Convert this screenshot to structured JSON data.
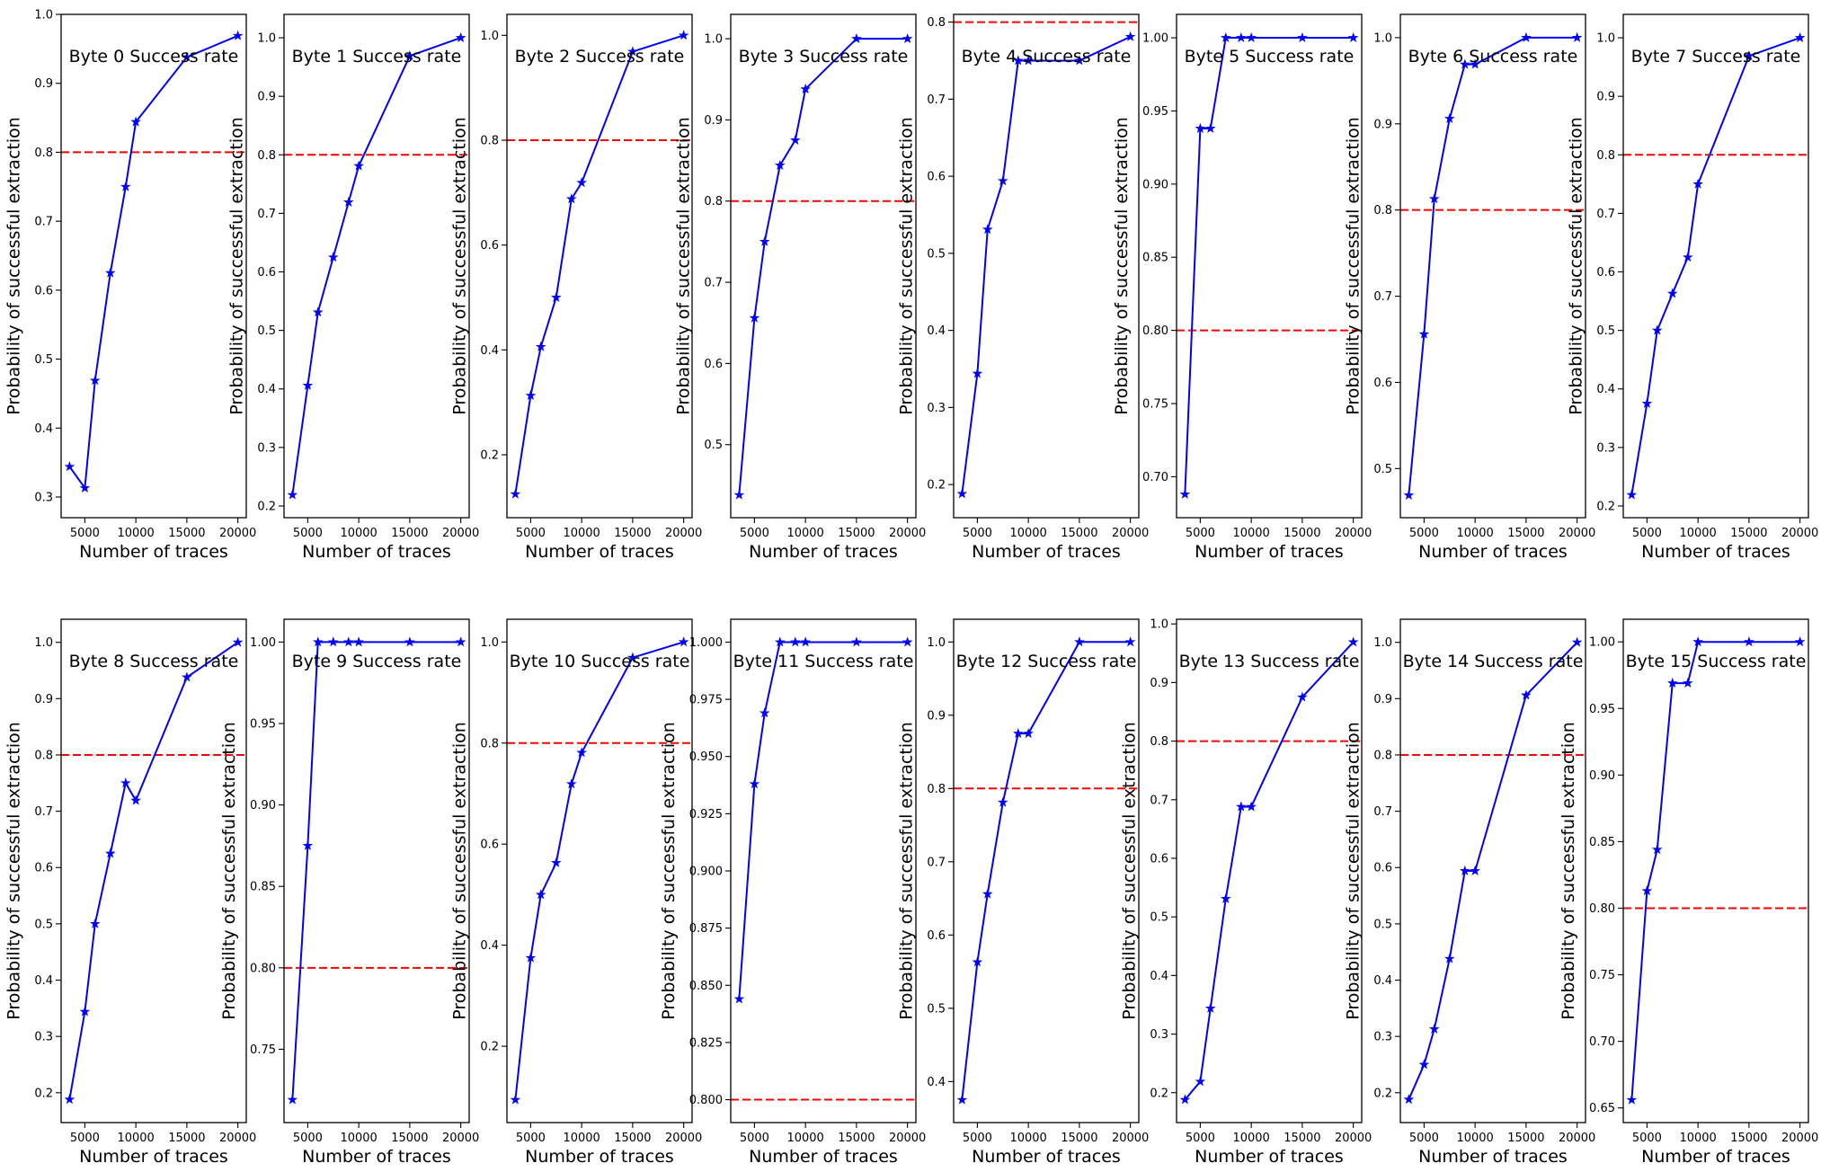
{
  "chart_data": [
    {
      "type": "line",
      "title": "Byte 0 Success rate",
      "xlabel": "Number of traces",
      "ylabel": "Probability of successful extraction",
      "x": [
        3500,
        5000,
        6000,
        7500,
        9000,
        10000,
        15000,
        20000
      ],
      "values": [
        0.344,
        0.313,
        0.469,
        0.625,
        0.75,
        0.844,
        0.938,
        0.969
      ],
      "threshold": 0.8,
      "xlim": [
        2675,
        20825
      ],
      "ylim": [
        0.27,
        1.0
      ],
      "xticks": [
        5000,
        10000,
        15000,
        20000
      ],
      "xtick_labels": [
        "5000",
        "10000",
        "15000",
        "20000"
      ],
      "yticks": [
        0.3,
        0.4,
        0.5,
        0.6,
        0.7,
        0.8,
        0.9,
        1.0
      ],
      "ytick_labels": [
        "0.3",
        "0.4",
        "0.5",
        "0.6",
        "0.7",
        "0.8",
        "0.9",
        "1.0"
      ]
    },
    {
      "type": "line",
      "title": "Byte 1 Success rate",
      "xlabel": "Number of traces",
      "ylabel": "Probability of successful extraction",
      "x": [
        3500,
        5000,
        6000,
        7500,
        9000,
        10000,
        15000,
        20000
      ],
      "values": [
        0.219,
        0.406,
        0.531,
        0.625,
        0.719,
        0.781,
        0.969,
        1.0
      ],
      "threshold": 0.8,
      "xlim": [
        2675,
        20825
      ],
      "ylim": [
        0.18,
        1.04
      ],
      "xticks": [
        5000,
        10000,
        15000,
        20000
      ],
      "xtick_labels": [
        "5000",
        "10000",
        "15000",
        "20000"
      ],
      "yticks": [
        0.2,
        0.3,
        0.4,
        0.5,
        0.6,
        0.7,
        0.8,
        0.9,
        1.0
      ],
      "ytick_labels": [
        "0.2",
        "0.3",
        "0.4",
        "0.5",
        "0.6",
        "0.7",
        "0.8",
        "0.9",
        "1.0"
      ]
    },
    {
      "type": "line",
      "title": "Byte 2 Success rate",
      "xlabel": "Number of traces",
      "ylabel": "Probability of successful extraction",
      "x": [
        3500,
        5000,
        6000,
        7500,
        9000,
        10000,
        15000,
        20000
      ],
      "values": [
        0.125,
        0.313,
        0.406,
        0.5,
        0.688,
        0.719,
        0.969,
        1.0
      ],
      "threshold": 0.8,
      "xlim": [
        2675,
        20825
      ],
      "ylim": [
        0.08,
        1.04
      ],
      "xticks": [
        5000,
        10000,
        15000,
        20000
      ],
      "xtick_labels": [
        "5000",
        "10000",
        "15000",
        "20000"
      ],
      "yticks": [
        0.2,
        0.4,
        0.6,
        0.8,
        1.0
      ],
      "ytick_labels": [
        "0.2",
        "0.4",
        "0.6",
        "0.8",
        "1.0"
      ]
    },
    {
      "type": "line",
      "title": "Byte 3 Success rate",
      "xlabel": "Number of traces",
      "ylabel": "Probability of successful extraction",
      "x": [
        3500,
        5000,
        6000,
        7500,
        9000,
        10000,
        15000,
        20000
      ],
      "values": [
        0.438,
        0.656,
        0.75,
        0.844,
        0.875,
        0.938,
        1.0,
        1.0
      ],
      "threshold": 0.8,
      "xlim": [
        2675,
        20825
      ],
      "ylim": [
        0.41,
        1.03
      ],
      "xticks": [
        5000,
        10000,
        15000,
        20000
      ],
      "xtick_labels": [
        "5000",
        "10000",
        "15000",
        "20000"
      ],
      "yticks": [
        0.5,
        0.6,
        0.7,
        0.8,
        0.9,
        1.0
      ],
      "ytick_labels": [
        "0.5",
        "0.6",
        "0.7",
        "0.8",
        "0.9",
        "1.0"
      ]
    },
    {
      "type": "line",
      "title": "Byte 4 Success rate",
      "xlabel": "Number of traces",
      "ylabel": "Probability of successful extraction",
      "x": [
        3500,
        5000,
        6000,
        7500,
        9000,
        10000,
        15000,
        20000
      ],
      "values": [
        0.188,
        0.344,
        0.531,
        0.594,
        0.75,
        0.75,
        0.75,
        0.781
      ],
      "threshold": 0.8,
      "xlim": [
        2675,
        20825
      ],
      "ylim": [
        0.157,
        0.81
      ],
      "xticks": [
        5000,
        10000,
        15000,
        20000
      ],
      "xtick_labels": [
        "5000",
        "10000",
        "15000",
        "20000"
      ],
      "yticks": [
        0.2,
        0.3,
        0.4,
        0.5,
        0.6,
        0.7,
        0.8
      ],
      "ytick_labels": [
        "0.2",
        "0.3",
        "0.4",
        "0.5",
        "0.6",
        "0.7",
        "0.8"
      ]
    },
    {
      "type": "line",
      "title": "Byte 5 Success rate",
      "xlabel": "Number of traces",
      "ylabel": "Probability of successful extraction",
      "x": [
        3500,
        5000,
        6000,
        7500,
        9000,
        10000,
        15000,
        20000
      ],
      "values": [
        0.688,
        0.938,
        0.938,
        1.0,
        1.0,
        1.0,
        1.0,
        1.0
      ],
      "threshold": 0.8,
      "xlim": [
        2675,
        20825
      ],
      "ylim": [
        0.672,
        1.016
      ],
      "xticks": [
        5000,
        10000,
        15000,
        20000
      ],
      "xtick_labels": [
        "5000",
        "10000",
        "15000",
        "20000"
      ],
      "yticks": [
        0.7,
        0.75,
        0.8,
        0.85,
        0.9,
        0.95,
        1.0
      ],
      "ytick_labels": [
        "0.70",
        "0.75",
        "0.80",
        "0.85",
        "0.90",
        "0.95",
        "1.00"
      ]
    },
    {
      "type": "line",
      "title": "Byte 6 Success rate",
      "xlabel": "Number of traces",
      "ylabel": "Probability of successful extraction",
      "x": [
        3500,
        5000,
        6000,
        7500,
        9000,
        10000,
        15000,
        20000
      ],
      "values": [
        0.469,
        0.656,
        0.813,
        0.906,
        0.969,
        0.969,
        1.0,
        1.0
      ],
      "threshold": 0.8,
      "xlim": [
        2675,
        20825
      ],
      "ylim": [
        0.443,
        1.027
      ],
      "xticks": [
        5000,
        10000,
        15000,
        20000
      ],
      "xtick_labels": [
        "5000",
        "10000",
        "15000",
        "20000"
      ],
      "yticks": [
        0.5,
        0.6,
        0.7,
        0.8,
        0.9,
        1.0
      ],
      "ytick_labels": [
        "0.5",
        "0.6",
        "0.7",
        "0.8",
        "0.9",
        "1.0"
      ]
    },
    {
      "type": "line",
      "title": "Byte 7 Success rate",
      "xlabel": "Number of traces",
      "ylabel": "Probability of successful extraction",
      "x": [
        3500,
        5000,
        6000,
        7500,
        9000,
        10000,
        15000,
        20000
      ],
      "values": [
        0.219,
        0.375,
        0.5,
        0.563,
        0.625,
        0.75,
        0.969,
        1.0
      ],
      "threshold": 0.8,
      "xlim": [
        2675,
        20825
      ],
      "ylim": [
        0.18,
        1.04
      ],
      "xticks": [
        5000,
        10000,
        15000,
        20000
      ],
      "xtick_labels": [
        "5000",
        "10000",
        "15000",
        "20000"
      ],
      "yticks": [
        0.2,
        0.3,
        0.4,
        0.5,
        0.6,
        0.7,
        0.8,
        0.9,
        1.0
      ],
      "ytick_labels": [
        "0.2",
        "0.3",
        "0.4",
        "0.5",
        "0.6",
        "0.7",
        "0.8",
        "0.9",
        "1.0"
      ]
    },
    {
      "type": "line",
      "title": "Byte 8 Success rate",
      "xlabel": "Number of traces",
      "ylabel": "Probability of successful extraction",
      "x": [
        3500,
        5000,
        6000,
        7500,
        9000,
        10000,
        15000,
        20000
      ],
      "values": [
        0.188,
        0.344,
        0.5,
        0.625,
        0.75,
        0.719,
        0.938,
        1.0
      ],
      "threshold": 0.8,
      "xlim": [
        2675,
        20825
      ],
      "ylim": [
        0.147,
        1.041
      ],
      "xticks": [
        5000,
        10000,
        15000,
        20000
      ],
      "xtick_labels": [
        "5000",
        "10000",
        "15000",
        "20000"
      ],
      "yticks": [
        0.2,
        0.3,
        0.4,
        0.5,
        0.6,
        0.7,
        0.8,
        0.9,
        1.0
      ],
      "ytick_labels": [
        "0.2",
        "0.3",
        "0.4",
        "0.5",
        "0.6",
        "0.7",
        "0.8",
        "0.9",
        "1.0"
      ]
    },
    {
      "type": "line",
      "title": "Byte 9 Success rate",
      "xlabel": "Number of traces",
      "ylabel": "Probability of successful extraction",
      "x": [
        3500,
        5000,
        6000,
        7500,
        9000,
        10000,
        15000,
        20000
      ],
      "values": [
        0.719,
        0.875,
        1.0,
        1.0,
        1.0,
        1.0,
        1.0,
        1.0
      ],
      "threshold": 0.8,
      "xlim": [
        2675,
        20825
      ],
      "ylim": [
        0.705,
        1.014
      ],
      "xticks": [
        5000,
        10000,
        15000,
        20000
      ],
      "xtick_labels": [
        "5000",
        "10000",
        "15000",
        "20000"
      ],
      "yticks": [
        0.75,
        0.8,
        0.85,
        0.9,
        0.95,
        1.0
      ],
      "ytick_labels": [
        "0.75",
        "0.80",
        "0.85",
        "0.90",
        "0.95",
        "1.00"
      ]
    },
    {
      "type": "line",
      "title": "Byte 10 Success rate",
      "xlabel": "Number of traces",
      "ylabel": "Probability of successful extraction",
      "x": [
        3500,
        5000,
        6000,
        7500,
        9000,
        10000,
        15000,
        20000
      ],
      "values": [
        0.094,
        0.375,
        0.5,
        0.563,
        0.719,
        0.781,
        0.969,
        1.0
      ],
      "threshold": 0.8,
      "xlim": [
        2675,
        20825
      ],
      "ylim": [
        0.049,
        1.045
      ],
      "xticks": [
        5000,
        10000,
        15000,
        20000
      ],
      "xtick_labels": [
        "5000",
        "10000",
        "15000",
        "20000"
      ],
      "yticks": [
        0.2,
        0.4,
        0.6,
        0.8,
        1.0
      ],
      "ytick_labels": [
        "0.2",
        "0.4",
        "0.6",
        "0.8",
        "1.0"
      ]
    },
    {
      "type": "line",
      "title": "Byte 11 Success rate",
      "xlabel": "Number of traces",
      "ylabel": "Probability of successful extraction",
      "x": [
        3500,
        5000,
        6000,
        7500,
        9000,
        10000,
        15000,
        20000
      ],
      "values": [
        0.844,
        0.938,
        0.969,
        1.0,
        1.0,
        1.0,
        1.0,
        1.0
      ],
      "threshold": 0.8,
      "xlim": [
        2675,
        20825
      ],
      "ylim": [
        0.79,
        1.01
      ],
      "xticks": [
        5000,
        10000,
        15000,
        20000
      ],
      "xtick_labels": [
        "5000",
        "10000",
        "15000",
        "20000"
      ],
      "yticks": [
        0.8,
        0.825,
        0.85,
        0.875,
        0.9,
        0.925,
        0.95,
        0.975,
        1.0
      ],
      "ytick_labels": [
        "0.800",
        "0.825",
        "0.850",
        "0.875",
        "0.900",
        "0.925",
        "0.950",
        "0.975",
        "1.000"
      ]
    },
    {
      "type": "line",
      "title": "Byte 12 Success rate",
      "xlabel": "Number of traces",
      "ylabel": "Probability of successful extraction",
      "x": [
        3500,
        5000,
        6000,
        7500,
        9000,
        10000,
        15000,
        20000
      ],
      "values": [
        0.375,
        0.563,
        0.656,
        0.781,
        0.875,
        0.875,
        1.0,
        1.0
      ],
      "threshold": 0.8,
      "xlim": [
        2675,
        20825
      ],
      "ylim": [
        0.344,
        1.031
      ],
      "xticks": [
        5000,
        10000,
        15000,
        20000
      ],
      "xtick_labels": [
        "5000",
        "10000",
        "15000",
        "20000"
      ],
      "yticks": [
        0.4,
        0.5,
        0.6,
        0.7,
        0.8,
        0.9,
        1.0
      ],
      "ytick_labels": [
        "0.4",
        "0.5",
        "0.6",
        "0.7",
        "0.8",
        "0.9",
        "1.0"
      ]
    },
    {
      "type": "line",
      "title": "Byte 13 Success rate",
      "xlabel": "Number of traces",
      "ylabel": "Probability of successful extraction",
      "x": [
        3500,
        5000,
        6000,
        7500,
        9000,
        10000,
        15000,
        20000
      ],
      "values": [
        0.188,
        0.219,
        0.344,
        0.531,
        0.688,
        0.688,
        0.875,
        0.969
      ],
      "threshold": 0.8,
      "xlim": [
        2675,
        20825
      ],
      "ylim": [
        0.149,
        1.008
      ],
      "xticks": [
        5000,
        10000,
        15000,
        20000
      ],
      "xtick_labels": [
        "5000",
        "10000",
        "15000",
        "20000"
      ],
      "yticks": [
        0.2,
        0.3,
        0.4,
        0.5,
        0.6,
        0.7,
        0.8,
        0.9,
        1.0
      ],
      "ytick_labels": [
        "0.2",
        "0.3",
        "0.4",
        "0.5",
        "0.6",
        "0.7",
        "0.8",
        "0.9",
        "1.0"
      ]
    },
    {
      "type": "line",
      "title": "Byte 14 Success rate",
      "xlabel": "Number of traces",
      "ylabel": "Probability of successful extraction",
      "x": [
        3500,
        5000,
        6000,
        7500,
        9000,
        10000,
        15000,
        20000
      ],
      "values": [
        0.188,
        0.25,
        0.313,
        0.438,
        0.594,
        0.594,
        0.906,
        1.0
      ],
      "threshold": 0.8,
      "xlim": [
        2675,
        20825
      ],
      "ylim": [
        0.147,
        1.041
      ],
      "xticks": [
        5000,
        10000,
        15000,
        20000
      ],
      "xtick_labels": [
        "5000",
        "10000",
        "15000",
        "20000"
      ],
      "yticks": [
        0.2,
        0.3,
        0.4,
        0.5,
        0.6,
        0.7,
        0.8,
        0.9,
        1.0
      ],
      "ytick_labels": [
        "0.2",
        "0.3",
        "0.4",
        "0.5",
        "0.6",
        "0.7",
        "0.8",
        "0.9",
        "1.0"
      ]
    },
    {
      "type": "line",
      "title": "Byte 15 Success rate",
      "xlabel": "Number of traces",
      "ylabel": "Probability of successful extraction",
      "x": [
        3500,
        5000,
        6000,
        7500,
        9000,
        10000,
        15000,
        20000
      ],
      "values": [
        0.656,
        0.813,
        0.844,
        0.969,
        0.969,
        1.0,
        1.0,
        1.0
      ],
      "threshold": 0.8,
      "xlim": [
        2675,
        20825
      ],
      "ylim": [
        0.639,
        1.017
      ],
      "xticks": [
        5000,
        10000,
        15000,
        20000
      ],
      "xtick_labels": [
        "5000",
        "10000",
        "15000",
        "20000"
      ],
      "yticks": [
        0.65,
        0.7,
        0.75,
        0.8,
        0.85,
        0.9,
        0.95,
        1.0
      ],
      "ytick_labels": [
        "0.65",
        "0.70",
        "0.75",
        "0.80",
        "0.85",
        "0.90",
        "0.95",
        "1.00"
      ]
    }
  ],
  "colors": {
    "series": "#0000ff",
    "threshold": "#ff0000",
    "axes": "#000000",
    "background": "#ffffff"
  },
  "marker": "star-icon"
}
